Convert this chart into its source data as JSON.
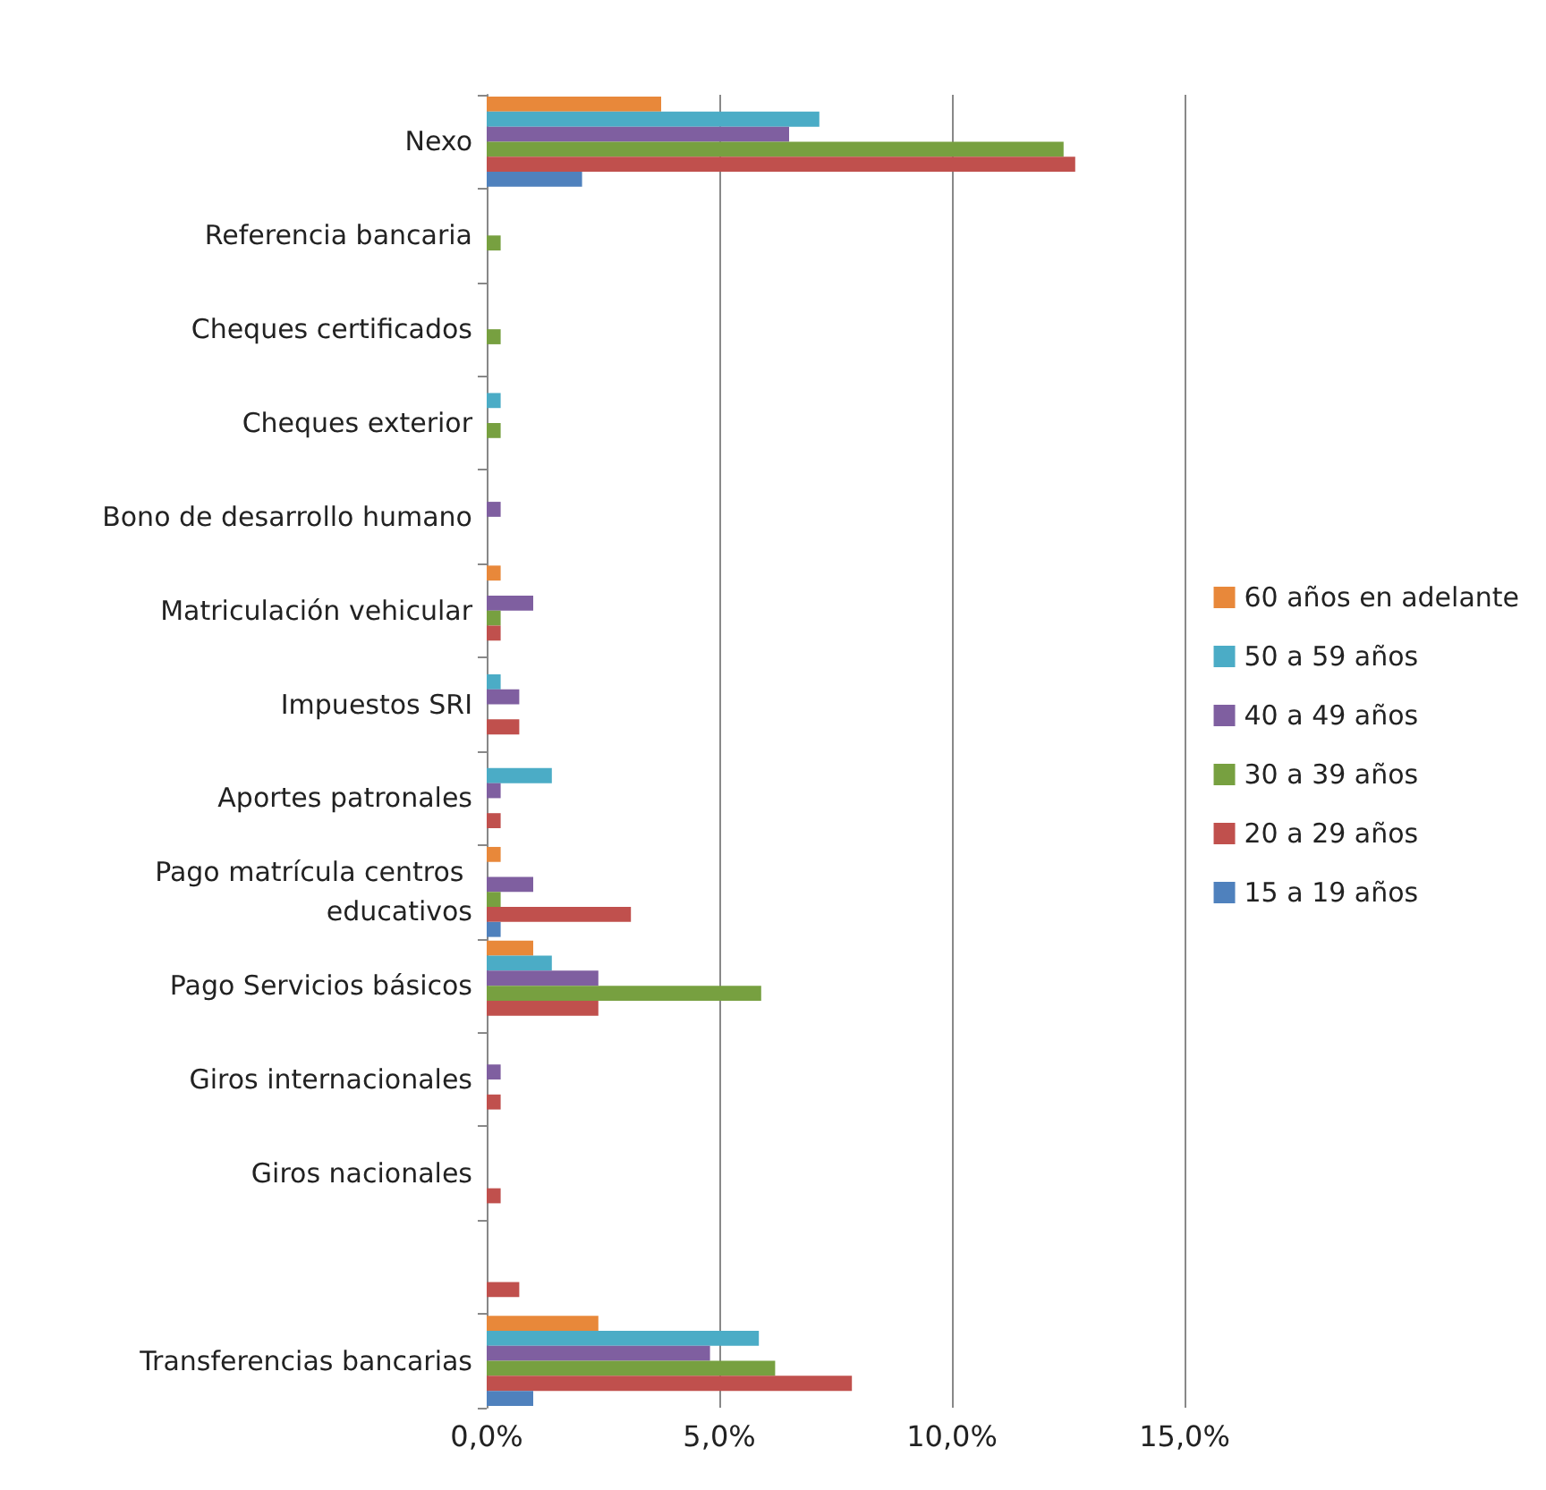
{
  "chart_data": {
    "type": "bar",
    "orientation": "horizontal",
    "categories": [
      "Nexo",
      "Referencia bancaria",
      "Cheques certificados",
      "Cheques exterior",
      "Bono de desarrollo humano",
      "Matriculación vehicular",
      "Impuestos SRI",
      "Aportes patronales",
      "Pago matrícula centros educativos",
      "Pago Servicios básicos",
      "Giros internacionales",
      "Giros nacionales",
      null,
      "Transferencias bancarias"
    ],
    "series": [
      {
        "name": "60 años en adelante",
        "color": "#e8883a",
        "values": [
          3.75,
          0,
          0,
          0,
          0,
          0.3,
          0,
          0,
          0.3,
          1.0,
          0,
          0,
          0,
          2.4
        ]
      },
      {
        "name": "50 a 59 años",
        "color": "#4bacc6",
        "values": [
          7.15,
          0,
          0,
          0.3,
          0,
          0,
          0.3,
          1.4,
          0,
          1.4,
          0,
          0,
          0,
          5.85
        ]
      },
      {
        "name": "40 a 49 años",
        "color": "#7f5fa0",
        "values": [
          6.5,
          0,
          0,
          0,
          0.3,
          1.0,
          0.7,
          0.3,
          1.0,
          2.4,
          0.3,
          0,
          0,
          4.8
        ]
      },
      {
        "name": "30 a 39 años",
        "color": "#77a040",
        "values": [
          12.4,
          0.3,
          0.3,
          0.3,
          0,
          0.3,
          0,
          0,
          0.3,
          5.9,
          0,
          0,
          0,
          6.2
        ]
      },
      {
        "name": "20 a 29 años",
        "color": "#c0504d",
        "values": [
          12.65,
          0,
          0,
          0,
          0,
          0.3,
          0.7,
          0.3,
          3.1,
          2.4,
          0.3,
          0.3,
          0.7,
          7.85
        ]
      },
      {
        "name": "15 a 19 años",
        "color": "#4f81bd",
        "values": [
          2.05,
          0,
          0,
          0,
          0,
          0,
          0,
          0,
          0.3,
          0,
          0,
          0,
          0,
          1.0
        ]
      }
    ],
    "xlim": [
      0,
      15
    ],
    "xticks": [
      {
        "value": 0,
        "label": "0,0%"
      },
      {
        "value": 5,
        "label": "5,0%"
      },
      {
        "value": 10,
        "label": "10,0%"
      },
      {
        "value": 15,
        "label": "15,0%"
      }
    ],
    "grid": "x",
    "legend": "right"
  }
}
